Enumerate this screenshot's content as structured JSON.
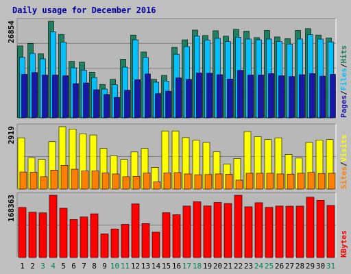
{
  "chart_data": {
    "type": "bar",
    "title": "Daily usage for December 2016",
    "categories": [
      "1",
      "2",
      "3",
      "4",
      "5",
      "6",
      "7",
      "8",
      "9",
      "10",
      "11",
      "12",
      "13",
      "14",
      "15",
      "16",
      "17",
      "18",
      "19",
      "20",
      "21",
      "22",
      "23",
      "24",
      "25",
      "26",
      "27",
      "28",
      "29",
      "30",
      "31"
    ],
    "weekend_days": [
      "3",
      "4",
      "10",
      "11",
      "17",
      "18",
      "24",
      "25",
      "31"
    ],
    "panels": [
      {
        "id": "hits",
        "ymax_label": "26854",
        "ymax": 26854,
        "series": [
          {
            "name": "Hits",
            "color": "#1e8060",
            "values": [
              20000,
              20700,
              17800,
              26854,
              23200,
              15700,
              15500,
              12700,
              9300,
              10700,
              16300,
              23000,
              18300,
              10700,
              11800,
              19600,
              21700,
              24400,
              22900,
              24200,
              22700,
              24600,
              24100,
              22300,
              24300,
              22500,
              22000,
              24300,
              24800,
              23000,
              22200
            ]
          },
          {
            "name": "Files",
            "color": "#00c0ff",
            "values": [
              16800,
              17900,
              16400,
              23900,
              21000,
              13900,
              13200,
              11200,
              8000,
              9200,
              14100,
              21700,
              16800,
              9900,
              10200,
              17700,
              19800,
              22700,
              21600,
              22100,
              21200,
              22400,
              21900,
              21700,
              21900,
              21200,
              20500,
              21900,
              23100,
              21900,
              21100
            ]
          },
          {
            "name": "Pages",
            "color": "#1818a8",
            "values": [
              12100,
              12600,
              11900,
              11900,
              11700,
              9500,
              9700,
              7800,
              6500,
              5700,
              7700,
              10600,
              12200,
              6700,
              7400,
              11100,
              10700,
              12500,
              12400,
              12000,
              10800,
              13200,
              11900,
              11900,
              12300,
              11700,
              11500,
              12000,
              12300,
              11600,
              12100
            ]
          }
        ],
        "legend": [
          "Pages",
          "/",
          "Files",
          "/",
          "Hits"
        ]
      },
      {
        "id": "visits",
        "ymax_label": "2919",
        "ymax": 2919,
        "series": [
          {
            "name": "Visits",
            "color": "#ffff00",
            "values": [
              2400,
              1470,
              1390,
              2220,
              2919,
              2810,
              2590,
              2530,
              1900,
              1560,
              1390,
              1740,
              1900,
              1010,
              2720,
              2720,
              2410,
              2290,
              2180,
              1750,
              1170,
              1430,
              2690,
              2460,
              2320,
              2400,
              1620,
              1450,
              2180,
              2300,
              2320
            ]
          },
          {
            "name": "Sites",
            "color": "#ff8000",
            "values": [
              800,
              790,
              580,
              890,
              1110,
              930,
              850,
              850,
              760,
              710,
              580,
              600,
              750,
              340,
              760,
              770,
              710,
              670,
              680,
              710,
              690,
              420,
              740,
              740,
              740,
              710,
              700,
              740,
              780,
              730,
              740
            ]
          }
        ],
        "legend": [
          "Sites",
          "/",
          "Visits"
        ]
      },
      {
        "id": "kbytes",
        "ymax_label": "168363",
        "ymax": 168363,
        "series": [
          {
            "name": "KBytes",
            "color": "#ff0000",
            "values": [
              135500,
              122500,
              120800,
              168363,
              133200,
              102600,
              109800,
              118200,
              64000,
              77300,
              89700,
              145000,
              91900,
              68600,
              121200,
              116000,
              139200,
              150800,
              139500,
              149000,
              146100,
              168363,
              137100,
              148200,
              135600,
              139100,
              138800,
              139000,
              163100,
              154900,
              140800
            ]
          }
        ],
        "legend": [
          "KBytes"
        ]
      }
    ],
    "colors": {
      "background": "#c0c0c0",
      "plot_background": "#b8b8b8",
      "title": "#0000a0",
      "axis_label": "#000000",
      "weekday_label": "#000000",
      "weekend_label": "#00805c",
      "legend_separator": "#000000"
    },
    "xlabel": "",
    "ylabel": "",
    "grid": true
  }
}
